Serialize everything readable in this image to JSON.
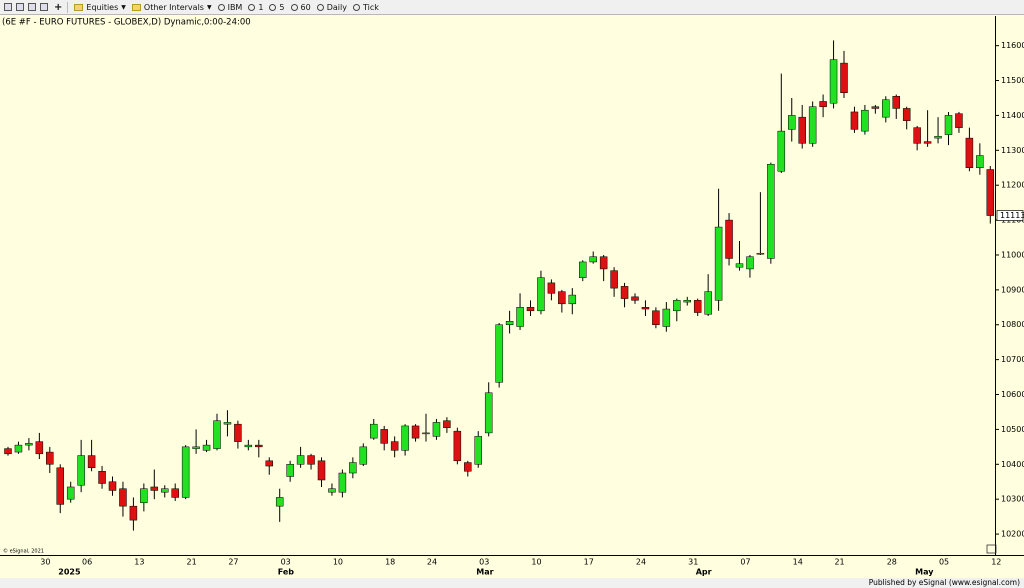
{
  "toolbar": {
    "items": [
      "Equities",
      "Other Intervals",
      "IBM",
      "1",
      "5",
      "60",
      "Daily",
      "Tick"
    ]
  },
  "footer": "Published by eSignal (www.esignal.com)",
  "watermark": "© eSignal, 2021",
  "chart_data": {
    "type": "candlestick",
    "title": "(6E #F - EURO FUTURES - GLOBEX,D) Dynamic,0:00-24:00",
    "up_color": "#22e022",
    "down_color": "#dd1111",
    "background": "#ffffe0",
    "ylim": [
      10140,
      11685
    ],
    "yticks": [
      10200,
      10300,
      10400,
      10500,
      10600,
      10700,
      10800,
      10900,
      11000,
      11100,
      11200,
      11300,
      11400,
      11500,
      11600
    ],
    "last_price": 11113,
    "categories": [
      null,
      null,
      null,
      "30",
      null,
      null,
      null,
      "06",
      null,
      null,
      null,
      null,
      "13",
      null,
      null,
      null,
      null,
      "21",
      null,
      null,
      null,
      "27",
      null,
      null,
      null,
      null,
      "03",
      null,
      null,
      null,
      null,
      "10",
      null,
      null,
      null,
      null,
      "18",
      null,
      null,
      null,
      "24",
      null,
      null,
      null,
      null,
      "03",
      null,
      null,
      null,
      null,
      "10",
      null,
      null,
      null,
      null,
      "17",
      null,
      null,
      null,
      null,
      "24",
      null,
      null,
      null,
      null,
      "31",
      null,
      null,
      null,
      null,
      "07",
      null,
      null,
      null,
      null,
      "14",
      null,
      null,
      null,
      "21",
      null,
      null,
      null,
      null,
      "28",
      null,
      null,
      null,
      null,
      "05",
      null,
      null,
      null,
      null,
      "12"
    ],
    "x_groups": [
      null,
      null,
      null,
      null,
      null,
      "2025",
      null,
      null,
      null,
      null,
      null,
      null,
      null,
      null,
      null,
      null,
      null,
      null,
      null,
      null,
      null,
      null,
      null,
      null,
      null,
      null,
      "Feb",
      null,
      null,
      null,
      null,
      null,
      null,
      null,
      null,
      null,
      null,
      null,
      null,
      null,
      null,
      null,
      null,
      null,
      null,
      "Mar",
      null,
      null,
      null,
      null,
      null,
      null,
      null,
      null,
      null,
      null,
      null,
      null,
      null,
      null,
      null,
      null,
      null,
      null,
      null,
      null,
      "Apr",
      null,
      null,
      null,
      null,
      null,
      null,
      null,
      null,
      null,
      null,
      null,
      null,
      null,
      null,
      null,
      null,
      null,
      null,
      null,
      null,
      "May",
      null,
      null,
      null,
      null,
      null,
      null,
      null
    ],
    "open": [
      10445,
      10435,
      10455,
      10465,
      10435,
      10390,
      10300,
      10340,
      10425,
      10380,
      10350,
      10330,
      10280,
      10290,
      10335,
      10320,
      10330,
      10305,
      10445,
      10440,
      10445,
      10515,
      10515,
      10450,
      10455,
      10410,
      10280,
      10365,
      10400,
      10425,
      10410,
      10320,
      10320,
      10375,
      10400,
      10475,
      10500,
      10465,
      10440,
      10510,
      10490,
      10480,
      10525,
      10495,
      10405,
      10400,
      10490,
      10635,
      10800,
      10795,
      10850,
      10840,
      10920,
      10895,
      10860,
      10935,
      10980,
      10995,
      10955,
      10910,
      10880,
      10850,
      10840,
      10795,
      10840,
      10865,
      10870,
      10830,
      10870,
      11100,
      10965,
      10960,
      11005,
      10990,
      11240,
      11360,
      11395,
      11320,
      11440,
      11435,
      11550,
      11410,
      11355,
      11425,
      11395,
      11455,
      11420,
      11365,
      11325,
      11335,
      11345,
      11405,
      11335,
      11250,
      11245
    ],
    "high": [
      10450,
      10465,
      10475,
      10490,
      10450,
      10400,
      10350,
      10470,
      10470,
      10395,
      10365,
      10350,
      10305,
      10345,
      10385,
      10340,
      10345,
      10455,
      10500,
      10470,
      10545,
      10555,
      10525,
      10470,
      10470,
      10420,
      10330,
      10410,
      10450,
      10430,
      10420,
      10345,
      10385,
      10420,
      10460,
      10530,
      10510,
      10480,
      10515,
      10515,
      10545,
      10530,
      10535,
      10505,
      10410,
      10495,
      10635,
      10805,
      10840,
      10890,
      10870,
      10955,
      10930,
      10900,
      10905,
      10985,
      11010,
      11000,
      10965,
      10920,
      10890,
      10870,
      10850,
      10865,
      10875,
      10880,
      10875,
      10945,
      11190,
      11120,
      11040,
      11000,
      11180,
      11265,
      11520,
      11450,
      11430,
      11440,
      11460,
      11615,
      11585,
      11425,
      11430,
      11430,
      11455,
      11460,
      11425,
      11370,
      11415,
      11395,
      11410,
      11410,
      11365,
      11320,
      11255
    ],
    "low": [
      10425,
      10430,
      10440,
      10415,
      10375,
      10260,
      10290,
      10320,
      10380,
      10330,
      10310,
      10250,
      10210,
      10265,
      10300,
      10305,
      10295,
      10300,
      10430,
      10435,
      10440,
      10480,
      10445,
      10440,
      10420,
      10370,
      10235,
      10350,
      10390,
      10385,
      10335,
      10310,
      10305,
      10360,
      10395,
      10470,
      10440,
      10420,
      10425,
      10465,
      10465,
      10470,
      10490,
      10400,
      10365,
      10390,
      10480,
      10620,
      10775,
      10785,
      10825,
      10830,
      10870,
      10835,
      10830,
      10925,
      10975,
      10925,
      10880,
      10850,
      10860,
      10825,
      10790,
      10780,
      10810,
      10855,
      10825,
      10825,
      10840,
      10970,
      10955,
      10935,
      11000,
      10975,
      11235,
      11325,
      11305,
      11310,
      11395,
      11420,
      11450,
      11350,
      11345,
      11405,
      11380,
      11390,
      11360,
      11300,
      11310,
      11320,
      11315,
      11350,
      11240,
      11230,
      11090
    ],
    "close": [
      10430,
      10455,
      10460,
      10430,
      10400,
      10285,
      10335,
      10425,
      10390,
      10345,
      10325,
      10280,
      10240,
      10330,
      10325,
      10330,
      10305,
      10450,
      10450,
      10455,
      10525,
      10520,
      10465,
      10455,
      10450,
      10395,
      10305,
      10400,
      10425,
      10400,
      10355,
      10330,
      10375,
      10405,
      10450,
      10515,
      10460,
      10440,
      10510,
      10475,
      10490,
      10520,
      10505,
      10410,
      10380,
      10480,
      10605,
      10800,
      10810,
      10850,
      10840,
      10935,
      10890,
      10860,
      10885,
      10980,
      10995,
      10960,
      10905,
      10875,
      10870,
      10845,
      10800,
      10845,
      10870,
      10870,
      10835,
      10895,
      11080,
      10990,
      10975,
      10995,
      11005,
      11260,
      11355,
      11400,
      11320,
      11425,
      11425,
      11560,
      11465,
      11360,
      11415,
      11420,
      11445,
      11420,
      11385,
      11320,
      11320,
      11340,
      11400,
      11365,
      11250,
      11285,
      11113
    ]
  }
}
